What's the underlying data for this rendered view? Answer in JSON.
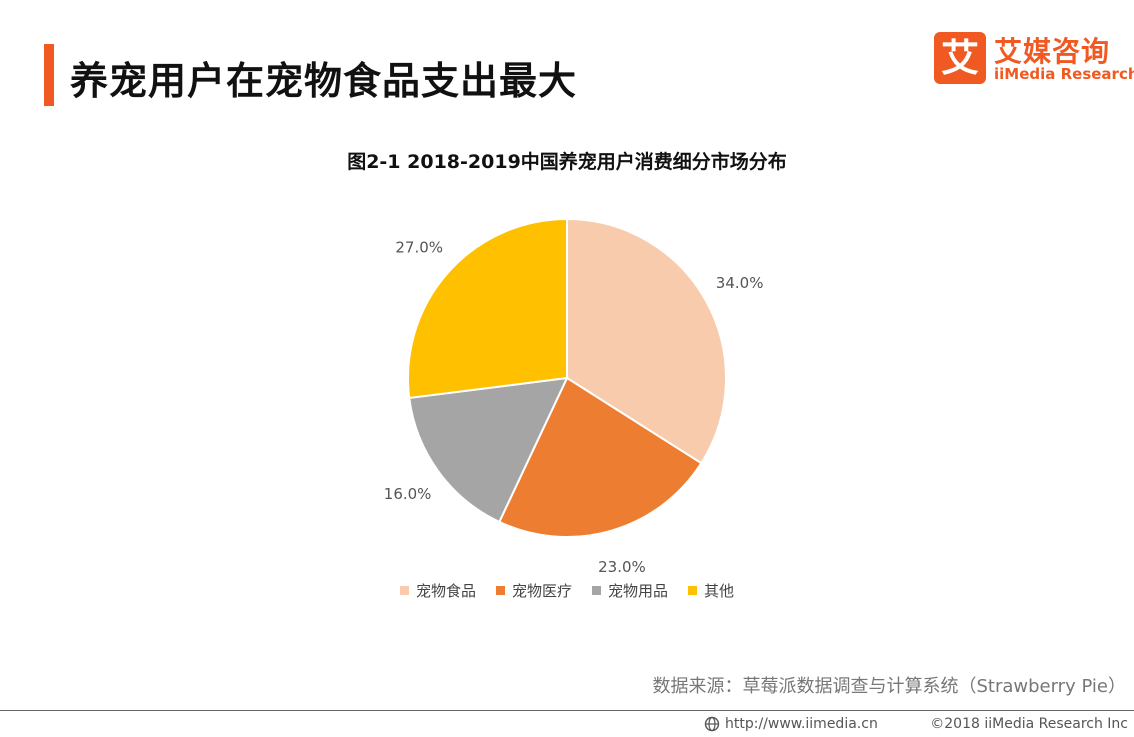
{
  "header": {
    "title": "养宠用户在宠物食品支出最大"
  },
  "logo": {
    "mark": "艾",
    "name_cn": "艾媒咨询",
    "name_en": "iiMedia Research",
    "icon": "iimedia-logo-icon"
  },
  "colors": {
    "accent": "#f05a22"
  },
  "chart_data": {
    "type": "pie",
    "title": "图2-1 2018-2019中国养宠用户消费细分市场分布",
    "categories": [
      "宠物食品",
      "宠物医疗",
      "宠物用品",
      "其他"
    ],
    "values": [
      34.0,
      23.0,
      16.0,
      27.0
    ],
    "labels": [
      "34.0%",
      "23.0%",
      "16.0%",
      "27.0%"
    ],
    "colors": [
      "#f8cbad",
      "#ed7d31",
      "#a5a5a5",
      "#ffc000"
    ],
    "legend_position": "bottom"
  },
  "source": "数据来源：草莓派数据调查与计算系统（Strawberry Pie）",
  "footer": {
    "url": "http://www.iimedia.cn",
    "copyright": "©2018  iiMedia Research  Inc",
    "icon": "globe-icon"
  }
}
